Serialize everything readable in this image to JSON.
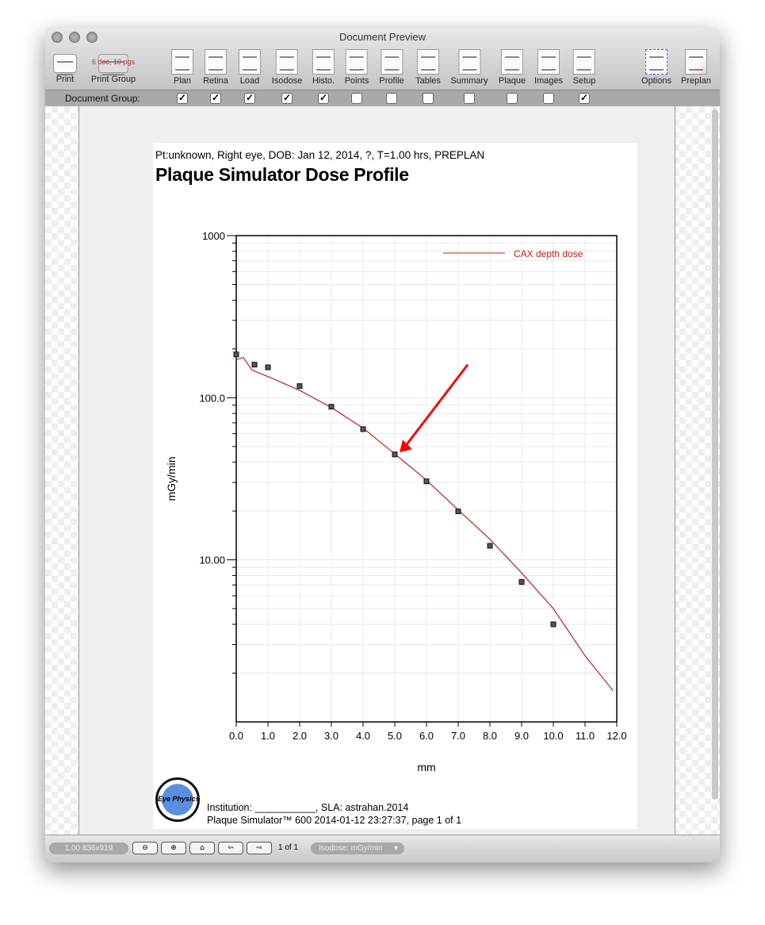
{
  "window": {
    "title": "Document Preview"
  },
  "toolbar": {
    "print": "Print",
    "print_group": "Print Group",
    "print_group_badge": "6 doc, 10 pgs",
    "items": [
      {
        "label": "Plan",
        "checked": true
      },
      {
        "label": "Retina",
        "checked": true
      },
      {
        "label": "Load",
        "checked": true
      },
      {
        "label": "Isodose",
        "checked": true
      },
      {
        "label": "Histo.",
        "checked": true
      },
      {
        "label": "Points",
        "checked": false
      },
      {
        "label": "Profile",
        "checked": false
      },
      {
        "label": "Tables",
        "checked": false
      },
      {
        "label": "Summary",
        "checked": false
      },
      {
        "label": "Plaque",
        "checked": false
      },
      {
        "label": "Images",
        "checked": false
      },
      {
        "label": "Setup",
        "checked": true
      }
    ],
    "options": "Options",
    "preplan": "Preplan"
  },
  "group_bar": {
    "label": "Document Group:"
  },
  "page": {
    "header": "Pt:unknown, Right eye, DOB: Jan 12, 2014, ?, T=1.00 hrs, PREPLAN",
    "title": "Plaque Simulator Dose Profile",
    "footer_line1": "Institution: ___________, SLA: astrahan.2014",
    "footer_line2": "Plaque Simulator™ 600 2014-01-12 23:27:37, page 1 of 1",
    "logo_text": "Eye Physics"
  },
  "chart_data": {
    "type": "line",
    "xlabel": "mm",
    "ylabel": "mGy/min",
    "xlim": [
      0,
      12
    ],
    "ylim": [
      1,
      1000
    ],
    "yscale": "log",
    "grid": true,
    "legend": "top-right",
    "xticks": [
      "0.0",
      "1.0",
      "2.0",
      "3.0",
      "4.0",
      "5.0",
      "6.0",
      "7.0",
      "8.0",
      "9.0",
      "10.0",
      "11.0",
      "12.0"
    ],
    "yticks": [
      {
        "value": 10,
        "label": "10.00"
      },
      {
        "value": 100,
        "label": "100.0"
      },
      {
        "value": 1000,
        "label": "1000"
      }
    ],
    "series": [
      {
        "name": "CAX depth dose",
        "type": "line",
        "color": "#c8201a",
        "x": [
          0,
          0.22,
          0.5,
          1,
          2,
          3,
          4,
          5,
          6,
          7,
          8,
          9,
          10,
          11,
          11.88
        ],
        "y": [
          172,
          177,
          148,
          135,
          111,
          87,
          65,
          45,
          31,
          20.3,
          13.4,
          8.3,
          5.0,
          2.56,
          1.56
        ]
      },
      {
        "type": "scatter",
        "color": "#555555",
        "x": [
          0,
          0.575,
          1,
          2,
          3,
          4,
          5,
          6,
          7,
          8,
          9,
          10
        ],
        "y": [
          185,
          160,
          154,
          118,
          88,
          64,
          44.7,
          30.5,
          19.9,
          12.2,
          7.3,
          4.0
        ]
      }
    ],
    "annotations": [
      {
        "type": "arrow",
        "color": "#ff0000",
        "from": [
          7.3,
          160
        ],
        "to": [
          5.15,
          46
        ]
      }
    ]
  },
  "statusbar": {
    "zoom": "1.00 836x919",
    "page_count": "1 of 1",
    "isodose_select": "Isodose: mGy/min"
  }
}
